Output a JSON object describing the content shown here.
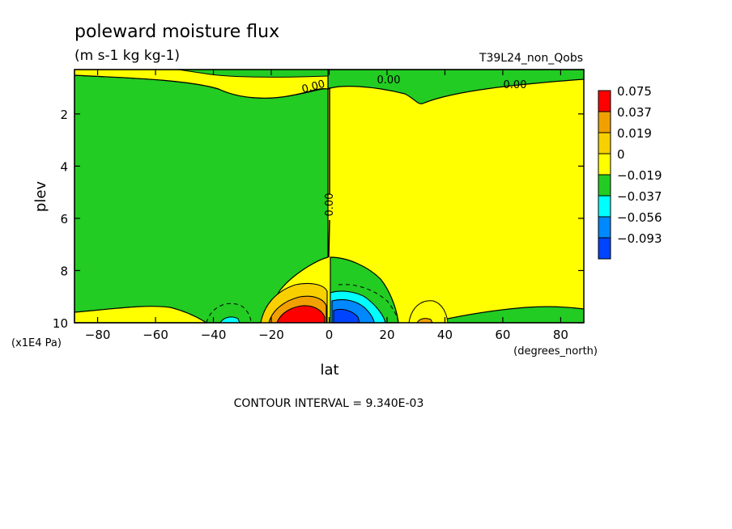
{
  "chart_data": {
    "type": "heatmap",
    "title": "poleward moisture flux",
    "subtitle": "(m s-1 kg kg-1)",
    "run_label": "T39L24_non_Qobs",
    "xlabel": "lat",
    "x_units": "(degrees_north)",
    "ylabel": "plev",
    "y_units": "(x1E4 Pa)",
    "xlim": [
      -88,
      88
    ],
    "ylim": [
      10,
      0.3
    ],
    "x_ticks": [
      -80,
      -60,
      -40,
      -20,
      0,
      20,
      40,
      60,
      80
    ],
    "y_ticks": [
      2,
      4,
      6,
      8,
      10
    ],
    "contour_interval_text": "CONTOUR INTERVAL = 9.340E-03",
    "contour_labels": [
      "0.00",
      "0.00",
      "0.00",
      "0.00"
    ],
    "legend": {
      "position": "right",
      "levels": [
        "0.075",
        "0.037",
        "0.019",
        "0",
        "−0.019",
        "−0.037",
        "−0.056",
        "−0.093"
      ],
      "colors": [
        "#ff0000",
        "#f0a000",
        "#f8d000",
        "#ffff00",
        "#22cc22",
        "#00ffff",
        "#0088ff",
        "#0044ff"
      ]
    },
    "colors": {
      "positive_fill": "#ffff00",
      "negative_fill": "#22cc22",
      "strong_positive": "#ff0000",
      "moderate_positive": "#f0a000",
      "weak_positive": "#f8d000",
      "weak_negative": "#00ffff",
      "moderate_negative": "#0088ff",
      "strong_negative": "#0044ff"
    }
  }
}
